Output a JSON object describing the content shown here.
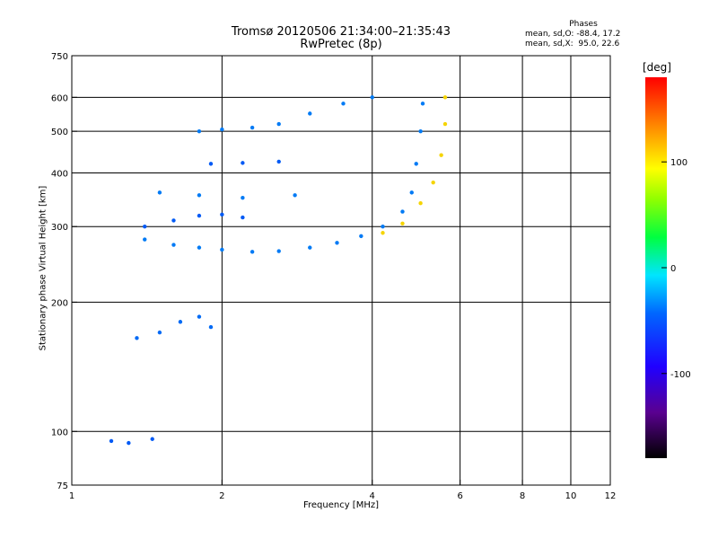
{
  "chart_data": {
    "type": "scatter",
    "title": "Tromsø 20120506 21:34:00–21:35:43",
    "subtitle": "RwPretec (8p)",
    "xlabel": "Frequency [MHz]",
    "ylabel": "Stationary phase Virtual Height [km]",
    "x_scale": "log",
    "y_scale": "log",
    "xlim": [
      1,
      12
    ],
    "ylim": [
      75,
      750
    ],
    "x_ticks": [
      1,
      2,
      4,
      6,
      8,
      10,
      12
    ],
    "x_tick_labels": [
      "1",
      "2",
      "4",
      "6",
      "8",
      "10",
      "12"
    ],
    "y_ticks": [
      75,
      100,
      200,
      300,
      400,
      500,
      600,
      750
    ],
    "y_tick_labels": [
      "75",
      "100",
      "200",
      "300",
      "400",
      "500",
      "600",
      "750"
    ],
    "grid": true,
    "colorbar": {
      "label": "[deg]",
      "range": [
        -180,
        180
      ],
      "ticks": [
        100,
        0,
        -100
      ],
      "tick_labels": [
        "100",
        "0",
        "-100"
      ]
    },
    "phases_box": {
      "heading": "Phases",
      "line_o": "mean, sd,O: -88.4, 17.2",
      "line_x": "mean, sd,X:  95.0, 22.6"
    },
    "traces": [
      {
        "name": "",
        "points": [
          [
            1.4,
            280
          ],
          [
            1.6,
            272
          ],
          [
            1.8,
            268
          ],
          [
            2.0,
            265
          ],
          [
            2.3,
            262
          ],
          [
            2.6,
            263
          ],
          [
            3.0,
            268
          ],
          [
            3.4,
            275
          ],
          [
            3.8,
            285
          ],
          [
            4.2,
            300
          ],
          [
            4.6,
            325
          ],
          [
            4.8,
            360
          ],
          [
            4.9,
            420
          ],
          [
            5.0,
            500
          ],
          [
            5.05,
            580
          ]
        ],
        "phase_deg": -100
      },
      {
        "name": "",
        "points": [
          [
            1.4,
            300
          ],
          [
            1.6,
            310
          ],
          [
            1.8,
            318
          ],
          [
            2.0,
            320
          ],
          [
            2.2,
            315
          ]
        ],
        "phase_deg": -110
      },
      {
        "name": "",
        "points": [
          [
            1.5,
            360
          ],
          [
            1.8,
            355
          ],
          [
            2.2,
            350
          ],
          [
            2.8,
            355
          ]
        ],
        "phase_deg": -100
      },
      {
        "name": "",
        "points": [
          [
            1.8,
            500
          ],
          [
            2.0,
            505
          ],
          [
            2.3,
            510
          ],
          [
            2.6,
            520
          ],
          [
            3.0,
            550
          ],
          [
            3.5,
            580
          ],
          [
            4.0,
            600
          ]
        ],
        "phase_deg": -100
      },
      {
        "name": "",
        "points": [
          [
            1.9,
            420
          ],
          [
            2.2,
            422
          ],
          [
            2.6,
            425
          ]
        ],
        "phase_deg": -110
      },
      {
        "name": "",
        "points": [
          [
            1.35,
            165
          ],
          [
            1.5,
            170
          ],
          [
            1.65,
            180
          ],
          [
            1.8,
            185
          ],
          [
            1.9,
            175
          ]
        ],
        "phase_deg": -105
      },
      {
        "name": "",
        "points": [
          [
            1.2,
            95
          ],
          [
            1.3,
            94
          ],
          [
            1.45,
            96
          ]
        ],
        "phase_deg": -110
      },
      {
        "name": "",
        "points": [
          [
            4.2,
            290
          ],
          [
            4.6,
            305
          ],
          [
            5.0,
            340
          ],
          [
            5.3,
            380
          ],
          [
            5.5,
            440
          ],
          [
            5.6,
            520
          ],
          [
            5.6,
            600
          ]
        ],
        "phase_deg": 110
      }
    ]
  }
}
